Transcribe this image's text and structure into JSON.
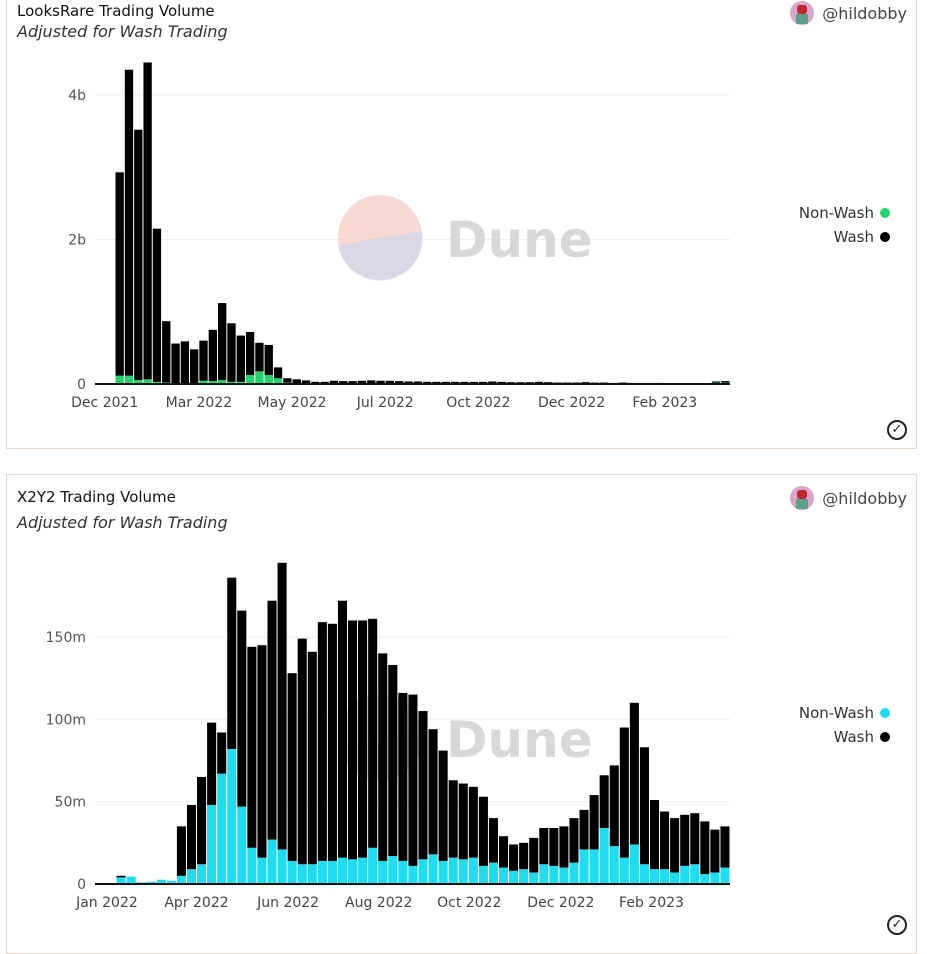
{
  "charts": [
    {
      "title": "LooksRare Trading Volume",
      "subtitle": "Adjusted for Wash Trading",
      "author": "@hildobby",
      "watermark": "Dune",
      "chart_data": {
        "type": "bar",
        "stacked": true,
        "title": "LooksRare Trading Volume",
        "ylabel": "",
        "xlabel": "",
        "ylim": [
          0,
          4.6
        ],
        "yticks": [
          {
            "v": 0,
            "label": "0"
          },
          {
            "v": 2,
            "label": "2b"
          },
          {
            "v": 4,
            "label": "4b"
          }
        ],
        "xticks": [
          {
            "i": -1.6,
            "label": "Dec 2021"
          },
          {
            "i": 8.5,
            "label": "Mar 2022"
          },
          {
            "i": 18.5,
            "label": "May 2022"
          },
          {
            "i": 28.5,
            "label": "Jul 2022"
          },
          {
            "i": 38.5,
            "label": "Oct 2022"
          },
          {
            "i": 48.5,
            "label": "Dec 2022"
          },
          {
            "i": 58.5,
            "label": "Feb 2023"
          }
        ],
        "legend_position": "right",
        "series": [
          {
            "name": "Non-Wash",
            "color": "#22d36b",
            "values": [
              0.115,
              0.115,
              0.055,
              0.065,
              0.03,
              0.02,
              0.01,
              0.01,
              0.01,
              0.045,
              0.04,
              0.055,
              0.03,
              0.03,
              0.125,
              0.175,
              0.125,
              0.08,
              0.02,
              0.01,
              0.01,
              0.005,
              0.005,
              0.005,
              0.005,
              0.005,
              0.005,
              0.005,
              0.005,
              0.005,
              0.005,
              0.005,
              0.005,
              0.005,
              0.005,
              0.005,
              0.005,
              0.005,
              0.005,
              0.005,
              0.005,
              0.005,
              0.005,
              0.005,
              0.005,
              0.005,
              0.005,
              0.005,
              0.005,
              0.005,
              0.005,
              0.005,
              0.005,
              0.005,
              0.005,
              0.005,
              0.005,
              0.005,
              0.005,
              0.005,
              0.005,
              0.005,
              0.005,
              0.005,
              0.02,
              0.02
            ]
          },
          {
            "name": "Wash",
            "color": "#000000",
            "values": [
              2.815,
              4.235,
              3.465,
              4.385,
              2.12,
              0.85,
              0.55,
              0.58,
              0.47,
              0.555,
              0.71,
              1.065,
              0.81,
              0.64,
              0.595,
              0.395,
              0.415,
              0.15,
              0.06,
              0.055,
              0.04,
              0.025,
              0.025,
              0.04,
              0.035,
              0.035,
              0.04,
              0.045,
              0.04,
              0.04,
              0.035,
              0.03,
              0.03,
              0.025,
              0.025,
              0.025,
              0.025,
              0.025,
              0.025,
              0.025,
              0.03,
              0.025,
              0.02,
              0.02,
              0.02,
              0.025,
              0.02,
              0.015,
              0.015,
              0.015,
              0.02,
              0.015,
              0.015,
              0.01,
              0.015,
              0.01,
              0.01,
              0.01,
              0.01,
              0.005,
              0.005,
              0.005,
              0.005,
              0.005,
              0.015,
              0.02
            ]
          }
        ]
      }
    },
    {
      "title": "X2Y2 Trading Volume",
      "subtitle": "Adjusted for Wash Trading",
      "author": "@hildobby",
      "watermark": "Dune",
      "chart_data": {
        "type": "bar",
        "stacked": true,
        "title": "X2Y2 Trading Volume",
        "ylabel": "",
        "xlabel": "",
        "ylim": [
          0,
          200
        ],
        "yticks": [
          {
            "v": 0,
            "label": "0"
          },
          {
            "v": 50,
            "label": "50m"
          },
          {
            "v": 100,
            "label": "100m"
          },
          {
            "v": 150,
            "label": "150m"
          }
        ],
        "xticks": [
          {
            "i": -1.4,
            "label": "Jan 2022"
          },
          {
            "i": 7.5,
            "label": "Apr 2022"
          },
          {
            "i": 16.6,
            "label": "Jun 2022"
          },
          {
            "i": 25.6,
            "label": "Aug 2022"
          },
          {
            "i": 34.6,
            "label": "Oct 2022"
          },
          {
            "i": 43.7,
            "label": "Dec 2022"
          },
          {
            "i": 52.7,
            "label": "Feb 2023"
          }
        ],
        "legend_position": "right",
        "series": [
          {
            "name": "Non-Wash",
            "color": "#1fdcf0",
            "values": [
              4,
              4.5,
              1,
              1.4,
              2.6,
              2,
              5,
              9,
              12,
              48,
              67,
              82,
              47,
              22,
              16,
              27,
              21,
              14,
              12,
              12,
              14,
              14,
              16,
              15,
              16,
              22,
              14,
              17,
              14,
              11,
              15,
              18,
              14,
              16,
              15,
              16,
              11,
              13,
              10,
              8,
              9,
              7,
              12,
              11,
              10,
              13,
              21,
              21,
              34,
              23,
              16,
              24,
              12,
              9,
              9,
              7,
              11,
              12,
              6,
              7,
              10
            ]
          },
          {
            "name": "Wash",
            "color": "#000000",
            "values": [
              1,
              0,
              0,
              0,
              0,
              0,
              30,
              39,
              53,
              50,
              25,
              104,
              119,
              122,
              129,
              145,
              174,
              114,
              137,
              129,
              145,
              144,
              156,
              145,
              144,
              139,
              126,
              116,
              102,
              104,
              90,
              76,
              67,
              47,
              46,
              43,
              42,
              27,
              19,
              16,
              16,
              21,
              22,
              23,
              25,
              27,
              24,
              33,
              32,
              49,
              79,
              86,
              71,
              42,
              35,
              33,
              31,
              31,
              32,
              26,
              25
            ]
          }
        ]
      }
    }
  ]
}
